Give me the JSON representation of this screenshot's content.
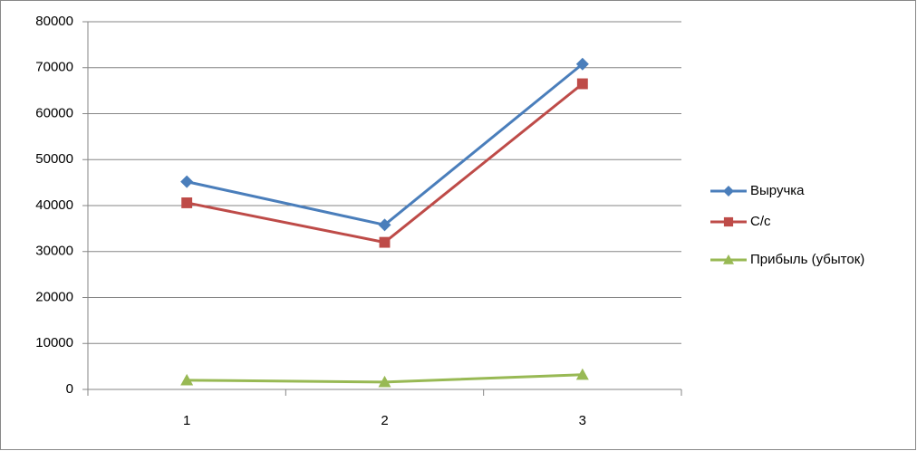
{
  "chart_data": {
    "type": "line",
    "categories": [
      "1",
      "2",
      "3"
    ],
    "series": [
      {
        "name": "Выручка",
        "color": "#4a7ebb",
        "marker": "diamond",
        "values": [
          45200,
          35800,
          70800
        ]
      },
      {
        "name": "С/с",
        "color": "#be4b48",
        "marker": "square",
        "values": [
          40600,
          32000,
          66500
        ]
      },
      {
        "name": "Прибыль (убыток)",
        "color": "#98b954",
        "marker": "triangle",
        "values": [
          2000,
          1600,
          3200
        ]
      }
    ],
    "ylim": [
      0,
      80000
    ],
    "yticks": [
      0,
      10000,
      20000,
      30000,
      40000,
      50000,
      60000,
      70000,
      80000
    ],
    "grid": true,
    "legend": "right"
  }
}
